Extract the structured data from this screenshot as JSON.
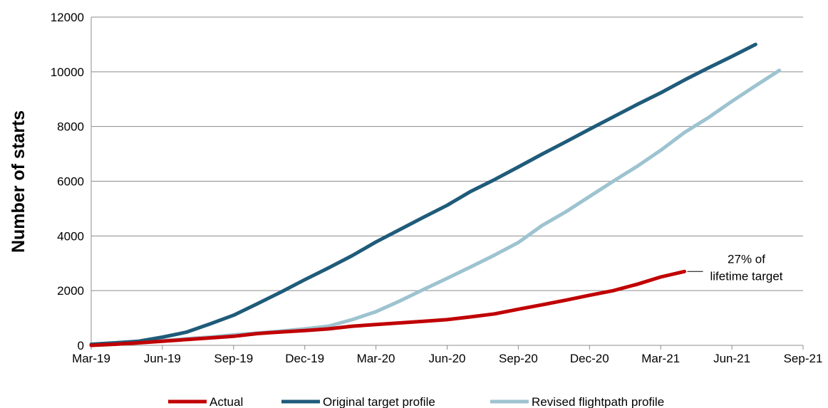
{
  "chart_data": {
    "type": "line",
    "title": "",
    "xlabel": "",
    "ylabel": "Number of starts",
    "ylim": [
      0,
      12000
    ],
    "yticks": [
      0,
      2000,
      4000,
      6000,
      8000,
      10000,
      12000
    ],
    "xlim": [
      "2019-03",
      "2021-09"
    ],
    "xticks": [
      "Mar-19",
      "Jun-19",
      "Sep-19",
      "Dec-19",
      "Mar-20",
      "Jun-20",
      "Sep-20",
      "Dec-20",
      "Mar-21",
      "Jun-21",
      "Sep-21"
    ],
    "grid": "horizontal",
    "legend_position": "bottom",
    "series": [
      {
        "name": "Actual",
        "color": "#c00000",
        "points": [
          [
            "2019-03",
            0
          ],
          [
            "2019-04",
            40
          ],
          [
            "2019-05",
            90
          ],
          [
            "2019-06",
            150
          ],
          [
            "2019-07",
            210
          ],
          [
            "2019-08",
            270
          ],
          [
            "2019-09",
            330
          ],
          [
            "2019-10",
            430
          ],
          [
            "2019-11",
            490
          ],
          [
            "2019-12",
            540
          ],
          [
            "2020-01",
            600
          ],
          [
            "2020-02",
            700
          ],
          [
            "2020-03",
            760
          ],
          [
            "2020-04",
            820
          ],
          [
            "2020-05",
            880
          ],
          [
            "2020-06",
            940
          ],
          [
            "2020-07",
            1040
          ],
          [
            "2020-08",
            1150
          ],
          [
            "2020-09",
            1320
          ],
          [
            "2020-10",
            1480
          ],
          [
            "2020-11",
            1650
          ],
          [
            "2020-12",
            1830
          ],
          [
            "2021-01",
            2000
          ],
          [
            "2021-02",
            2230
          ],
          [
            "2021-03",
            2500
          ],
          [
            "2021-04",
            2700
          ]
        ]
      },
      {
        "name": "Original target profile",
        "color": "#1f5b7a",
        "points": [
          [
            "2019-03",
            40
          ],
          [
            "2019-04",
            90
          ],
          [
            "2019-05",
            150
          ],
          [
            "2019-06",
            300
          ],
          [
            "2019-07",
            480
          ],
          [
            "2019-08",
            780
          ],
          [
            "2019-09",
            1100
          ],
          [
            "2019-10",
            1520
          ],
          [
            "2019-11",
            1950
          ],
          [
            "2019-12",
            2400
          ],
          [
            "2020-01",
            2830
          ],
          [
            "2020-02",
            3280
          ],
          [
            "2020-03",
            3780
          ],
          [
            "2020-04",
            4230
          ],
          [
            "2020-05",
            4680
          ],
          [
            "2020-06",
            5120
          ],
          [
            "2020-07",
            5630
          ],
          [
            "2020-08",
            6060
          ],
          [
            "2020-09",
            6520
          ],
          [
            "2020-10",
            6990
          ],
          [
            "2020-11",
            7440
          ],
          [
            "2020-12",
            7900
          ],
          [
            "2021-01",
            8350
          ],
          [
            "2021-02",
            8800
          ],
          [
            "2021-03",
            9230
          ],
          [
            "2021-04",
            9700
          ],
          [
            "2021-05",
            10140
          ],
          [
            "2021-06",
            10560
          ],
          [
            "2021-07",
            11000
          ]
        ]
      },
      {
        "name": "Revised flightpath profile",
        "color": "#9dc3d0",
        "points": [
          [
            "2019-03",
            0
          ],
          [
            "2019-04",
            50
          ],
          [
            "2019-05",
            100
          ],
          [
            "2019-06",
            170
          ],
          [
            "2019-07",
            240
          ],
          [
            "2019-08",
            300
          ],
          [
            "2019-09",
            380
          ],
          [
            "2019-10",
            450
          ],
          [
            "2019-11",
            520
          ],
          [
            "2019-12",
            600
          ],
          [
            "2020-01",
            700
          ],
          [
            "2020-02",
            940
          ],
          [
            "2020-03",
            1230
          ],
          [
            "2020-04",
            1620
          ],
          [
            "2020-05",
            2040
          ],
          [
            "2020-06",
            2450
          ],
          [
            "2020-07",
            2870
          ],
          [
            "2020-08",
            3300
          ],
          [
            "2020-09",
            3760
          ],
          [
            "2020-10",
            4380
          ],
          [
            "2020-11",
            4880
          ],
          [
            "2020-12",
            5440
          ],
          [
            "2021-01",
            6000
          ],
          [
            "2021-02",
            6540
          ],
          [
            "2021-03",
            7130
          ],
          [
            "2021-04",
            7780
          ],
          [
            "2021-05",
            8320
          ],
          [
            "2021-06",
            8920
          ],
          [
            "2021-07",
            9490
          ],
          [
            "2021-08",
            10050
          ]
        ]
      }
    ],
    "annotations": [
      {
        "lines": [
          "27% of",
          "lifetime target"
        ],
        "series": "Actual",
        "x": "2021-04",
        "y": 2700
      }
    ]
  }
}
